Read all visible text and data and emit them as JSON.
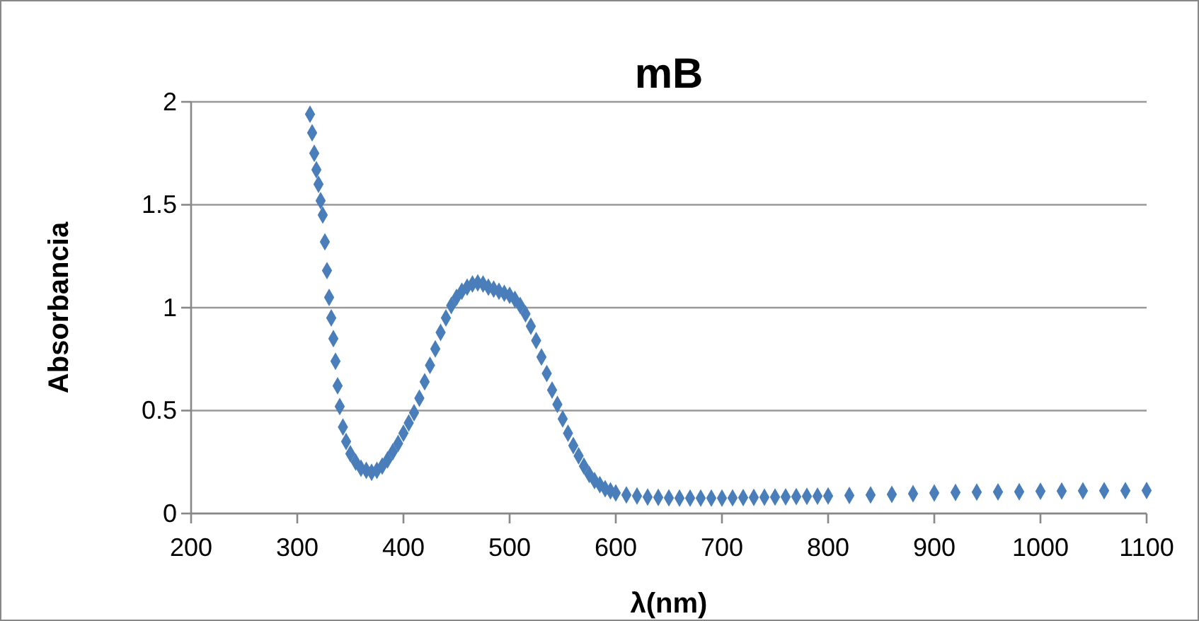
{
  "chart_data": {
    "type": "scatter",
    "title": "mB",
    "xlabel": "λ(nm)",
    "ylabel": "Absorbancia",
    "xlim": [
      200,
      1100
    ],
    "ylim": [
      0,
      2
    ],
    "xticks": [
      200,
      300,
      400,
      500,
      600,
      700,
      800,
      900,
      1000,
      1100
    ],
    "yticks": [
      0,
      0.5,
      1,
      1.5,
      2
    ],
    "grid": "y",
    "marker": "diamond",
    "series": [
      {
        "color": "#4a7ebb",
        "x": [
          312,
          314,
          316,
          318,
          320,
          322,
          324,
          326,
          328,
          330,
          332,
          334,
          336,
          338,
          340,
          343,
          346,
          350,
          355,
          360,
          365,
          370,
          375,
          380,
          385,
          390,
          395,
          400,
          405,
          410,
          415,
          420,
          425,
          430,
          435,
          440,
          445,
          450,
          455,
          460,
          465,
          470,
          475,
          480,
          485,
          490,
          495,
          500,
          505,
          510,
          515,
          520,
          525,
          530,
          535,
          540,
          545,
          550,
          555,
          560,
          565,
          570,
          575,
          580,
          585,
          590,
          595,
          600,
          610,
          620,
          630,
          640,
          650,
          660,
          670,
          680,
          690,
          700,
          710,
          720,
          730,
          740,
          750,
          760,
          770,
          780,
          790,
          800,
          820,
          840,
          860,
          880,
          900,
          920,
          940,
          960,
          980,
          1000,
          1020,
          1040,
          1060,
          1080,
          1100
        ],
        "values": [
          1.94,
          1.85,
          1.75,
          1.67,
          1.6,
          1.52,
          1.45,
          1.32,
          1.18,
          1.05,
          0.95,
          0.85,
          0.74,
          0.62,
          0.52,
          0.42,
          0.35,
          0.29,
          0.25,
          0.22,
          0.21,
          0.2,
          0.21,
          0.23,
          0.26,
          0.3,
          0.34,
          0.39,
          0.44,
          0.49,
          0.56,
          0.64,
          0.72,
          0.8,
          0.88,
          0.95,
          1.01,
          1.05,
          1.08,
          1.1,
          1.115,
          1.12,
          1.115,
          1.1,
          1.09,
          1.08,
          1.07,
          1.06,
          1.04,
          1.01,
          0.97,
          0.91,
          0.84,
          0.76,
          0.68,
          0.6,
          0.53,
          0.46,
          0.39,
          0.33,
          0.28,
          0.23,
          0.19,
          0.16,
          0.14,
          0.12,
          0.11,
          0.1,
          0.09,
          0.085,
          0.08,
          0.078,
          0.076,
          0.075,
          0.075,
          0.075,
          0.075,
          0.075,
          0.076,
          0.077,
          0.078,
          0.079,
          0.08,
          0.081,
          0.082,
          0.083,
          0.084,
          0.085,
          0.088,
          0.09,
          0.093,
          0.096,
          0.1,
          0.102,
          0.104,
          0.105,
          0.106,
          0.108,
          0.109,
          0.11,
          0.111,
          0.111,
          0.112
        ]
      }
    ]
  }
}
